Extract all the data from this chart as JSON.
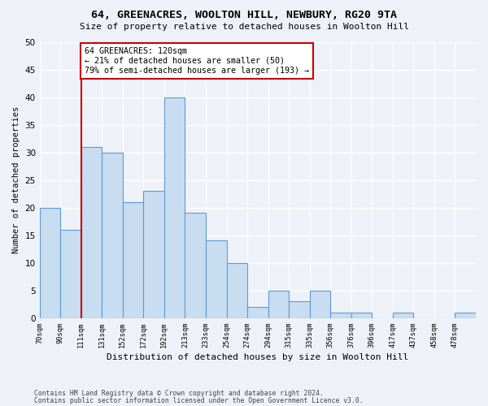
{
  "title1": "64, GREENACRES, WOOLTON HILL, NEWBURY, RG20 9TA",
  "title2": "Size of property relative to detached houses in Woolton Hill",
  "xlabel": "Distribution of detached houses by size in Woolton Hill",
  "ylabel": "Number of detached properties",
  "footnote1": "Contains HM Land Registry data © Crown copyright and database right 2024.",
  "footnote2": "Contains public sector information licensed under the Open Government Licence v3.0.",
  "bar_heights": [
    20,
    16,
    31,
    30,
    21,
    23,
    40,
    19,
    14,
    10,
    2,
    5,
    3,
    5,
    1,
    1,
    0,
    1,
    0,
    0,
    1
  ],
  "bar_fill": "#c8ddf0",
  "bar_edge": "#5b9bd5",
  "vline_index": 2.0,
  "vline_color": "#cc0000",
  "annotation_text": "64 GREENACRES: 120sqm\n← 21% of detached houses are smaller (50)\n79% of semi-detached houses are larger (193) →",
  "annotation_box_color": "#cc0000",
  "ylim": [
    0,
    50
  ],
  "yticks": [
    0,
    5,
    10,
    15,
    20,
    25,
    30,
    35,
    40,
    45,
    50
  ],
  "background": "#eef2f8",
  "axes_background": "#eef2f8",
  "grid_color": "#ffffff",
  "tick_labels": [
    "70sqm",
    "90sqm",
    "111sqm",
    "131sqm",
    "152sqm",
    "172sqm",
    "192sqm",
    "213sqm",
    "233sqm",
    "254sqm",
    "274sqm",
    "294sqm",
    "315sqm",
    "335sqm",
    "356sqm",
    "376sqm",
    "396sqm",
    "417sqm",
    "437sqm",
    "458sqm",
    "478sqm"
  ]
}
